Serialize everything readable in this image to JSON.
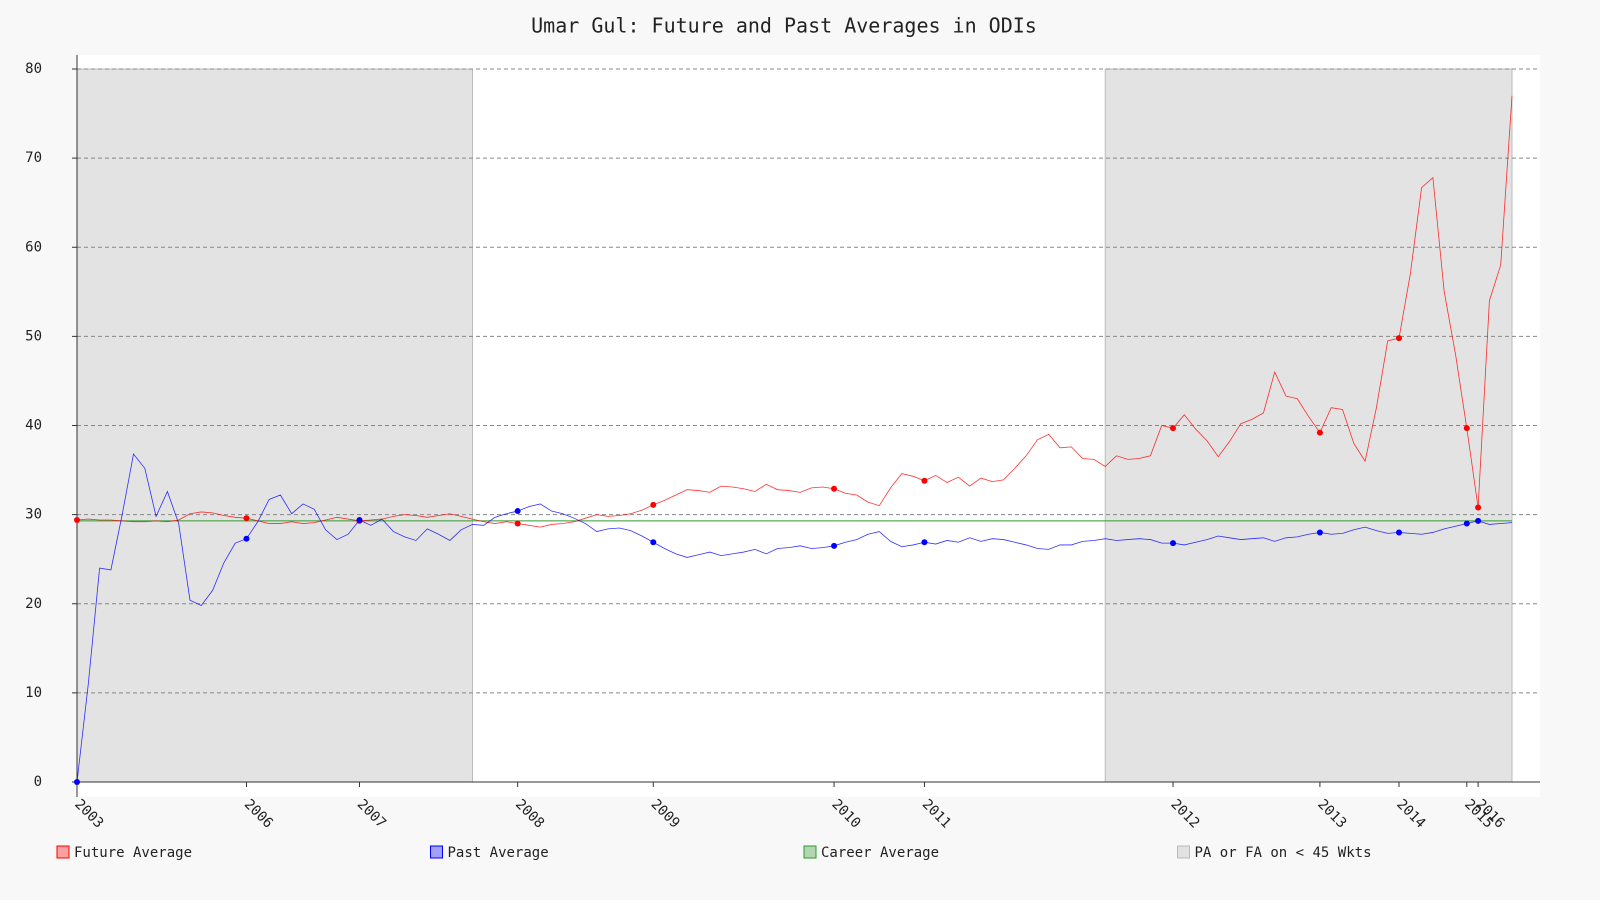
{
  "chart_data": {
    "type": "line",
    "title": "Umar Gul: Future and Past Averages in ODIs",
    "x": [
      0,
      1,
      2,
      3,
      4,
      5,
      6,
      7,
      8,
      9,
      10,
      11,
      12,
      13,
      14,
      15,
      16,
      17,
      18,
      19,
      20,
      21,
      22,
      23,
      24,
      25,
      26,
      27,
      28,
      29,
      30,
      31,
      32,
      33,
      34,
      35,
      36,
      37,
      38,
      39,
      40,
      41,
      42,
      43,
      44,
      45,
      46,
      47,
      48,
      49,
      50,
      51,
      52,
      53,
      54,
      55,
      56,
      57,
      58,
      59,
      60,
      61,
      62,
      63,
      64,
      65,
      66,
      67,
      68,
      69,
      70,
      71,
      72,
      73,
      74,
      75,
      76,
      77,
      78,
      79,
      80,
      81,
      82,
      83,
      84,
      85,
      86,
      87,
      88,
      89,
      90,
      91,
      92,
      93,
      94,
      95,
      96,
      97,
      98,
      99,
      100,
      101,
      102,
      103,
      104,
      105,
      106,
      107,
      108,
      109,
      110,
      111,
      112,
      113,
      114,
      115,
      116,
      117,
      118,
      119,
      120,
      121,
      122,
      123,
      124,
      125,
      126,
      127
    ],
    "series": [
      {
        "name": "Future Average",
        "color": "#ff0000",
        "values": [
          29.4,
          29.5,
          29.4,
          29.4,
          29.3,
          29.2,
          29.2,
          29.3,
          29.2,
          29.4,
          30.1,
          30.3,
          30.2,
          29.9,
          29.7,
          29.6,
          29.3,
          29.0,
          29.0,
          29.2,
          29.0,
          29.1,
          29.4,
          29.7,
          29.5,
          29.3,
          29.4,
          29.5,
          29.8,
          30.0,
          29.9,
          29.7,
          29.9,
          30.1,
          29.8,
          29.5,
          29.2,
          29.0,
          29.2,
          29.0,
          28.8,
          28.6,
          28.9,
          29.0,
          29.2,
          29.6,
          30.0,
          29.8,
          29.9,
          30.1,
          30.5,
          31.1,
          31.6,
          32.2,
          32.8,
          32.7,
          32.5,
          33.2,
          33.1,
          32.9,
          32.6,
          33.4,
          32.8,
          32.7,
          32.5,
          33.0,
          33.1,
          32.9,
          32.4,
          32.2,
          31.4,
          31.0,
          33.0,
          34.6,
          34.3,
          33.8,
          34.4,
          33.6,
          34.2,
          33.2,
          34.1,
          33.7,
          33.9,
          35.2,
          36.6,
          38.4,
          39.0,
          37.5,
          37.6,
          36.3,
          36.2,
          35.4,
          36.6,
          36.2,
          36.3,
          36.6,
          40.0,
          39.7,
          41.2,
          39.6,
          38.3,
          36.5,
          38.2,
          40.2,
          40.7,
          41.4,
          46.0,
          43.3,
          43.0,
          41.0,
          39.2,
          42.0,
          41.8,
          38.0,
          36.0,
          42.0,
          49.5,
          49.8,
          57.0,
          66.7,
          67.8,
          55.0,
          48.0,
          39.7,
          30.8,
          54.0,
          58.0,
          77.0
        ]
      },
      {
        "name": "Past Average",
        "color": "#0000ff",
        "values": [
          0,
          11,
          24,
          23.8,
          30,
          36.8,
          35.2,
          29.8,
          32.6,
          29,
          20.4,
          19.8,
          21.5,
          24.6,
          26.8,
          27.3,
          29.2,
          31.7,
          32.2,
          30.1,
          31.2,
          30.6,
          28.3,
          27.2,
          27.8,
          29.4,
          28.8,
          29.5,
          28.1,
          27.5,
          27.1,
          28.4,
          27.8,
          27.1,
          28.3,
          28.9,
          28.8,
          29.7,
          30.1,
          30.4,
          30.9,
          31.2,
          30.4,
          30.1,
          29.6,
          29.0,
          28.1,
          28.4,
          28.5,
          28.2,
          27.6,
          26.9,
          26.2,
          25.6,
          25.2,
          25.5,
          25.8,
          25.4,
          25.6,
          25.8,
          26.1,
          25.6,
          26.2,
          26.3,
          26.5,
          26.2,
          26.3,
          26.5,
          26.9,
          27.2,
          27.8,
          28.1,
          27.0,
          26.4,
          26.6,
          26.9,
          26.7,
          27.1,
          26.9,
          27.4,
          27.0,
          27.3,
          27.2,
          26.9,
          26.6,
          26.2,
          26.1,
          26.6,
          26.6,
          27.0,
          27.1,
          27.3,
          27.1,
          27.2,
          27.3,
          27.2,
          26.8,
          26.8,
          26.6,
          26.9,
          27.2,
          27.6,
          27.4,
          27.2,
          27.3,
          27.4,
          27.0,
          27.4,
          27.5,
          27.8,
          28.0,
          27.8,
          27.9,
          28.3,
          28.6,
          28.2,
          27.9,
          28.0,
          27.9,
          27.8,
          28.0,
          28.4,
          28.7,
          29.0,
          29.3,
          28.9,
          29.0,
          29.1
        ]
      }
    ],
    "reference_line": {
      "name": "Career Average",
      "color": "#2e9a2e",
      "value": 29.3
    },
    "shaded": {
      "name": "PA or FA on < 45 Wkts",
      "color": "#e3e3e3",
      "ranges": [
        [
          0,
          35
        ],
        [
          91,
          127
        ]
      ]
    },
    "xlim": [
      0,
      127
    ],
    "xticks": [
      {
        "value": 0,
        "label": "2003"
      },
      {
        "value": 15,
        "label": "2006"
      },
      {
        "value": 25,
        "label": "2007"
      },
      {
        "value": 39,
        "label": "2008"
      },
      {
        "value": 51,
        "label": "2009"
      },
      {
        "value": 67,
        "label": "2010"
      },
      {
        "value": 75,
        "label": "2011"
      },
      {
        "value": 97,
        "label": "2012"
      },
      {
        "value": 110,
        "label": "2013"
      },
      {
        "value": 117,
        "label": "2014"
      },
      {
        "value": 123,
        "label": "2015"
      },
      {
        "value": 124,
        "label": "2016"
      }
    ],
    "ylim": [
      0,
      80
    ],
    "yticks": [
      0,
      10,
      20,
      30,
      40,
      50,
      60,
      70,
      80
    ],
    "grid": true
  }
}
